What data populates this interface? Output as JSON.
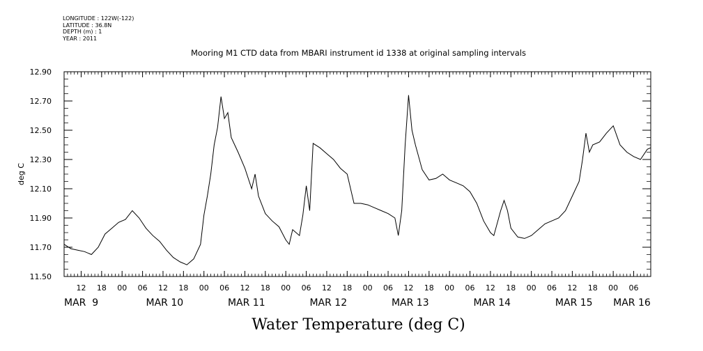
{
  "meta": {
    "longitude": "LONGITUDE : 122W(-122)",
    "latitude": "LATITUDE : 36.8N",
    "depth": "DEPTH (m) : 1",
    "year": "YEAR : 2011"
  },
  "footer_title": "Water Temperature (deg C)",
  "chart_data": {
    "type": "line",
    "title": "Mooring M1 CTD data from MBARI instrument id 1338 at original sampling intervals",
    "xlabel": "",
    "ylabel": "deg C",
    "ylim": [
      11.5,
      12.9
    ],
    "y_ticks": [
      "11.50",
      "11.70",
      "11.90",
      "12.10",
      "12.30",
      "12.50",
      "12.70",
      "12.90"
    ],
    "xlim": [
      "2011-03-09T07:00",
      "2011-03-16T11:00"
    ],
    "x_hour_ticks": [
      {
        "t": "2011-03-09T12:00",
        "label": "12"
      },
      {
        "t": "2011-03-09T18:00",
        "label": "18"
      },
      {
        "t": "2011-03-10T00:00",
        "label": "00"
      },
      {
        "t": "2011-03-10T06:00",
        "label": "06"
      },
      {
        "t": "2011-03-10T12:00",
        "label": "12"
      },
      {
        "t": "2011-03-10T18:00",
        "label": "18"
      },
      {
        "t": "2011-03-11T00:00",
        "label": "00"
      },
      {
        "t": "2011-03-11T06:00",
        "label": "06"
      },
      {
        "t": "2011-03-11T12:00",
        "label": "12"
      },
      {
        "t": "2011-03-11T18:00",
        "label": "18"
      },
      {
        "t": "2011-03-12T00:00",
        "label": "00"
      },
      {
        "t": "2011-03-12T06:00",
        "label": "06"
      },
      {
        "t": "2011-03-12T12:00",
        "label": "12"
      },
      {
        "t": "2011-03-12T18:00",
        "label": "18"
      },
      {
        "t": "2011-03-13T00:00",
        "label": "00"
      },
      {
        "t": "2011-03-13T06:00",
        "label": "06"
      },
      {
        "t": "2011-03-13T12:00",
        "label": "12"
      },
      {
        "t": "2011-03-13T18:00",
        "label": "18"
      },
      {
        "t": "2011-03-14T00:00",
        "label": "00"
      },
      {
        "t": "2011-03-14T06:00",
        "label": "06"
      },
      {
        "t": "2011-03-14T12:00",
        "label": "12"
      },
      {
        "t": "2011-03-14T18:00",
        "label": "18"
      },
      {
        "t": "2011-03-15T00:00",
        "label": "00"
      },
      {
        "t": "2011-03-15T06:00",
        "label": "06"
      },
      {
        "t": "2011-03-15T12:00",
        "label": "12"
      },
      {
        "t": "2011-03-15T18:00",
        "label": "18"
      },
      {
        "t": "2011-03-16T00:00",
        "label": "00"
      },
      {
        "t": "2011-03-16T06:00",
        "label": "06"
      }
    ],
    "x_day_labels": [
      {
        "t": "2011-03-09T07:00",
        "label": "MAR  9"
      },
      {
        "t": "2011-03-10T07:00",
        "label": "MAR 10"
      },
      {
        "t": "2011-03-11T07:00",
        "label": "MAR 11"
      },
      {
        "t": "2011-03-12T07:00",
        "label": "MAR 12"
      },
      {
        "t": "2011-03-13T07:00",
        "label": "MAR 13"
      },
      {
        "t": "2011-03-14T07:00",
        "label": "MAR 14"
      },
      {
        "t": "2011-03-15T07:00",
        "label": "MAR 15"
      },
      {
        "t": "2011-03-16T00:00",
        "label": "MAR 16"
      }
    ],
    "series": [
      {
        "color": "#000000",
        "points": [
          [
            "2011-03-09T07:00",
            11.72
          ],
          [
            "2011-03-09T09:00",
            11.69
          ],
          [
            "2011-03-09T11:00",
            11.68
          ],
          [
            "2011-03-09T13:00",
            11.67
          ],
          [
            "2011-03-09T15:00",
            11.65
          ],
          [
            "2011-03-09T17:00",
            11.7
          ],
          [
            "2011-03-09T19:00",
            11.79
          ],
          [
            "2011-03-09T21:00",
            11.83
          ],
          [
            "2011-03-09T23:00",
            11.87
          ],
          [
            "2011-03-10T01:00",
            11.89
          ],
          [
            "2011-03-10T03:00",
            11.95
          ],
          [
            "2011-03-10T05:00",
            11.9
          ],
          [
            "2011-03-10T07:00",
            11.83
          ],
          [
            "2011-03-10T09:00",
            11.78
          ],
          [
            "2011-03-10T11:00",
            11.74
          ],
          [
            "2011-03-10T13:00",
            11.68
          ],
          [
            "2011-03-10T15:00",
            11.63
          ],
          [
            "2011-03-10T17:00",
            11.6
          ],
          [
            "2011-03-10T19:00",
            11.58
          ],
          [
            "2011-03-10T21:00",
            11.62
          ],
          [
            "2011-03-10T23:00",
            11.72
          ],
          [
            "2011-03-11T00:00",
            11.92
          ],
          [
            "2011-03-11T01:00",
            12.05
          ],
          [
            "2011-03-11T02:00",
            12.2
          ],
          [
            "2011-03-11T03:00",
            12.4
          ],
          [
            "2011-03-11T04:00",
            12.52
          ],
          [
            "2011-03-11T05:00",
            12.73
          ],
          [
            "2011-03-11T06:00",
            12.58
          ],
          [
            "2011-03-11T07:00",
            12.62
          ],
          [
            "2011-03-11T08:00",
            12.45
          ],
          [
            "2011-03-11T10:00",
            12.35
          ],
          [
            "2011-03-11T12:00",
            12.24
          ],
          [
            "2011-03-11T14:00",
            12.1
          ],
          [
            "2011-03-11T15:00",
            12.2
          ],
          [
            "2011-03-11T16:00",
            12.05
          ],
          [
            "2011-03-11T18:00",
            11.93
          ],
          [
            "2011-03-11T20:00",
            11.88
          ],
          [
            "2011-03-11T22:00",
            11.84
          ],
          [
            "2011-03-12T00:00",
            11.75
          ],
          [
            "2011-03-12T01:00",
            11.72
          ],
          [
            "2011-03-12T02:00",
            11.82
          ],
          [
            "2011-03-12T03:00",
            11.8
          ],
          [
            "2011-03-12T04:00",
            11.78
          ],
          [
            "2011-03-12T05:00",
            11.92
          ],
          [
            "2011-03-12T06:00",
            12.12
          ],
          [
            "2011-03-12T07:00",
            11.95
          ],
          [
            "2011-03-12T08:00",
            12.41
          ],
          [
            "2011-03-12T10:00",
            12.38
          ],
          [
            "2011-03-12T12:00",
            12.34
          ],
          [
            "2011-03-12T14:00",
            12.3
          ],
          [
            "2011-03-12T16:00",
            12.24
          ],
          [
            "2011-03-12T18:00",
            12.2
          ],
          [
            "2011-03-12T20:00",
            12.0
          ],
          [
            "2011-03-12T22:00",
            12.0
          ],
          [
            "2011-03-13T00:00",
            11.99
          ],
          [
            "2011-03-13T02:00",
            11.97
          ],
          [
            "2011-03-13T04:00",
            11.95
          ],
          [
            "2011-03-13T06:00",
            11.93
          ],
          [
            "2011-03-13T08:00",
            11.9
          ],
          [
            "2011-03-13T09:00",
            11.78
          ],
          [
            "2011-03-13T10:00",
            11.95
          ],
          [
            "2011-03-13T11:00",
            12.4
          ],
          [
            "2011-03-13T12:00",
            12.74
          ],
          [
            "2011-03-13T13:00",
            12.5
          ],
          [
            "2011-03-13T14:00",
            12.4
          ],
          [
            "2011-03-13T16:00",
            12.23
          ],
          [
            "2011-03-13T18:00",
            12.16
          ],
          [
            "2011-03-13T20:00",
            12.17
          ],
          [
            "2011-03-13T22:00",
            12.2
          ],
          [
            "2011-03-14T00:00",
            12.16
          ],
          [
            "2011-03-14T02:00",
            12.14
          ],
          [
            "2011-03-14T04:00",
            12.12
          ],
          [
            "2011-03-14T06:00",
            12.08
          ],
          [
            "2011-03-14T08:00",
            12.0
          ],
          [
            "2011-03-14T10:00",
            11.88
          ],
          [
            "2011-03-14T12:00",
            11.8
          ],
          [
            "2011-03-14T13:00",
            11.78
          ],
          [
            "2011-03-14T15:00",
            11.95
          ],
          [
            "2011-03-14T16:00",
            12.02
          ],
          [
            "2011-03-14T17:00",
            11.95
          ],
          [
            "2011-03-14T18:00",
            11.83
          ],
          [
            "2011-03-14T20:00",
            11.77
          ],
          [
            "2011-03-14T22:00",
            11.76
          ],
          [
            "2011-03-15T00:00",
            11.78
          ],
          [
            "2011-03-15T02:00",
            11.82
          ],
          [
            "2011-03-15T04:00",
            11.86
          ],
          [
            "2011-03-15T06:00",
            11.88
          ],
          [
            "2011-03-15T08:00",
            11.9
          ],
          [
            "2011-03-15T10:00",
            11.95
          ],
          [
            "2011-03-15T12:00",
            12.05
          ],
          [
            "2011-03-15T14:00",
            12.15
          ],
          [
            "2011-03-15T15:00",
            12.3
          ],
          [
            "2011-03-15T16:00",
            12.48
          ],
          [
            "2011-03-15T17:00",
            12.35
          ],
          [
            "2011-03-15T18:00",
            12.4
          ],
          [
            "2011-03-15T20:00",
            12.42
          ],
          [
            "2011-03-15T22:00",
            12.48
          ],
          [
            "2011-03-16T00:00",
            12.53
          ],
          [
            "2011-03-16T02:00",
            12.4
          ],
          [
            "2011-03-16T04:00",
            12.35
          ],
          [
            "2011-03-16T06:00",
            12.32
          ],
          [
            "2011-03-16T08:00",
            12.3
          ],
          [
            "2011-03-16T10:00",
            12.37
          ],
          [
            "2011-03-16T11:00",
            12.38
          ]
        ]
      }
    ]
  }
}
